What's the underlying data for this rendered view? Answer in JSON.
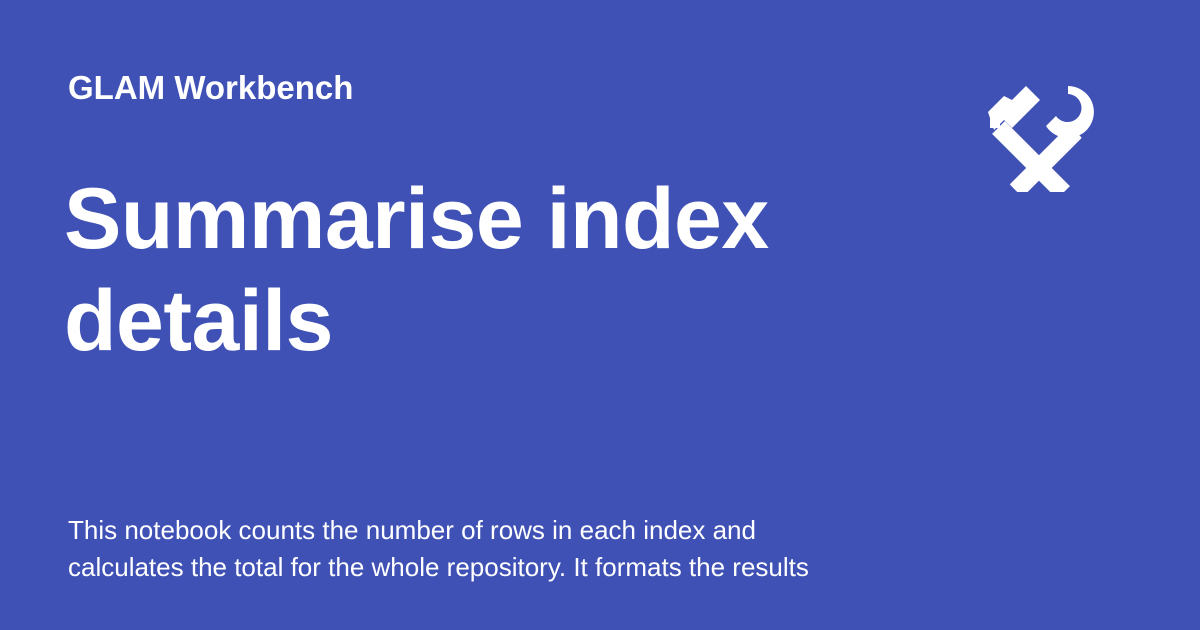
{
  "header": {
    "site_name": "GLAM Workbench",
    "logo_icon": "hammer-wrench-icon"
  },
  "main": {
    "title": "Summarise index details",
    "description_lines": [
      "This notebook counts the number of rows in each index and",
      "calculates the total for the whole repository. It formats the results"
    ]
  },
  "colors": {
    "background": "#3f51b5",
    "text": "#ffffff"
  }
}
